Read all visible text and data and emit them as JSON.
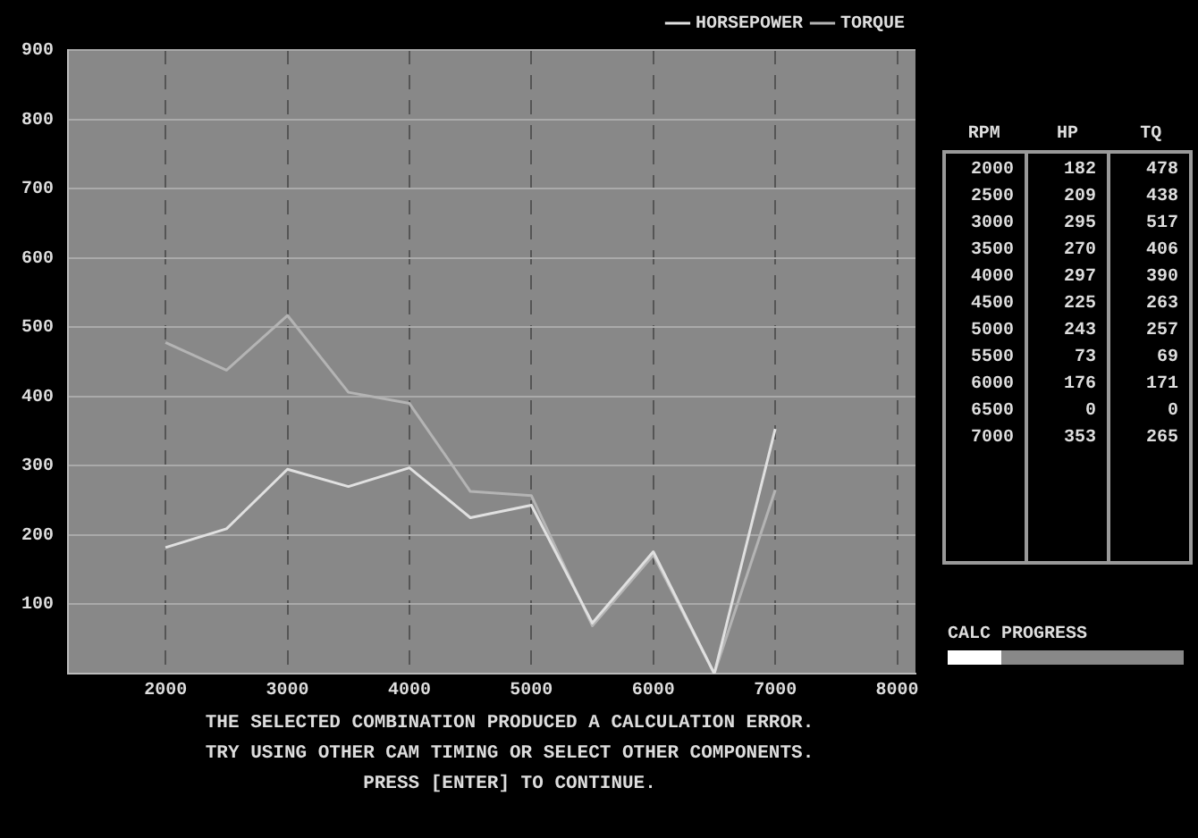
{
  "chart_data": [
    {
      "type": "line",
      "x": [
        2000,
        2500,
        3000,
        3500,
        4000,
        4500,
        5000,
        5500,
        6000,
        6500,
        7000
      ],
      "series": [
        {
          "name": "HORSEPOWER",
          "color": "#e0e0e0",
          "values": [
            182,
            209,
            295,
            270,
            297,
            225,
            243,
            73,
            176,
            0,
            353
          ]
        },
        {
          "name": "TORQUE",
          "color": "#b4b4b4",
          "values": [
            478,
            438,
            517,
            406,
            390,
            263,
            257,
            69,
            171,
            0,
            265
          ]
        }
      ],
      "xlim": [
        1200,
        8150
      ],
      "xticks": [
        2000,
        3000,
        4000,
        5000,
        6000,
        7000,
        8000
      ],
      "ylim": [
        0,
        900
      ],
      "yticks": [
        100,
        200,
        300,
        400,
        500,
        600,
        700,
        800,
        900
      ],
      "grid": true,
      "legend": "top right",
      "marker": "none",
      "line_style": "solid",
      "annotations": [
        "CALC PROGRESS",
        "THE SELECTED COMBINATION PRODUCED A CALCULATION ERROR.",
        "TRY USING OTHER CAM TIMING OR SELECT OTHER COMPONENTS.",
        "PRESS [ENTER] TO CONTINUE."
      ]
    },
    {
      "type": "heatmap",
      "data_labels": true,
      "ylabel": "RPM",
      "categories": [
        "HP",
        "TQ"
      ],
      "y_categories": [
        "2000",
        "2500",
        "3000",
        "3500",
        "4000",
        "4500",
        "5000",
        "5500",
        "6000",
        "6500",
        "7000"
      ],
      "cells": [
        [
          182,
          478
        ],
        [
          209,
          438
        ],
        [
          295,
          517
        ],
        [
          270,
          406
        ],
        [
          297,
          390
        ],
        [
          225,
          263
        ],
        [
          243,
          257
        ],
        [
          73,
          69
        ],
        [
          176,
          171
        ],
        [
          0,
          0
        ],
        [
          353,
          265
        ]
      ]
    }
  ]
}
